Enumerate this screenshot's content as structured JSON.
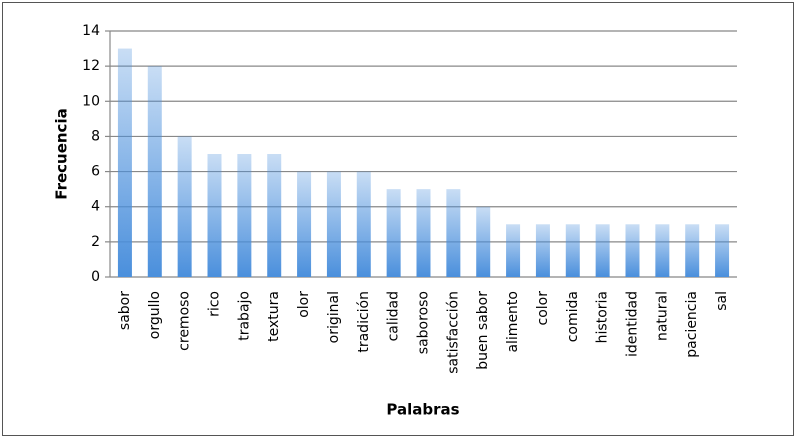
{
  "chart_data": {
    "type": "bar",
    "x_label": "Palabras",
    "y_label": "Frecuencia",
    "categories": [
      "sabor",
      "orgullo",
      "cremoso",
      "rico",
      "trabajo",
      "textura",
      "olor",
      "original",
      "tradición",
      "calidad",
      "saboroso",
      "satisfacción",
      "buen sabor",
      "alimento",
      "color",
      "comida",
      "historia",
      "identidad",
      "natural",
      "paciencia",
      "sal"
    ],
    "values": [
      13,
      12,
      8,
      7,
      7,
      7,
      6,
      6,
      6,
      5,
      5,
      5,
      4,
      3,
      3,
      3,
      3,
      3,
      3,
      3,
      3
    ],
    "color": "#4a8fdc",
    "ylim": [
      0,
      14
    ],
    "yticks": [
      0,
      2,
      4,
      6,
      8,
      10,
      12,
      14
    ],
    "grid": true
  }
}
